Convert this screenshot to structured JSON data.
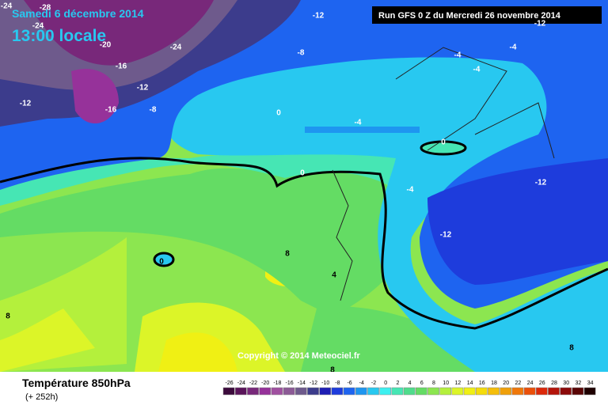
{
  "header": {
    "date": "Samedi 6 décembre 2014",
    "time": "13:00 locale",
    "run": "Run GFS 0 Z du Mercredi 26 novembre 2014"
  },
  "footer": {
    "title": "Température 850hPa",
    "lead": "(+ 252h)",
    "copyright": "Copyright © 2014 Meteociel.fr"
  },
  "scale": {
    "values": [
      -26,
      -24,
      -22,
      -20,
      -18,
      -16,
      -14,
      -12,
      -10,
      -8,
      -6,
      -4,
      -2,
      0,
      2,
      4,
      6,
      8,
      10,
      12,
      14,
      16,
      18,
      20,
      22,
      24,
      26,
      28,
      30,
      32,
      34
    ],
    "colors": [
      "#3c0a3c",
      "#5a145a",
      "#78287a",
      "#96329a",
      "#a050a0",
      "#8c5a96",
      "#6e5a8c",
      "#3c3c8c",
      "#1e1eb4",
      "#1e3cdc",
      "#1e64f0",
      "#1e96f0",
      "#28c8f0",
      "#3cf0f0",
      "#46e6b4",
      "#50dc8c",
      "#64dc64",
      "#8ce650",
      "#b4f03c",
      "#dcf528",
      "#f0f014",
      "#f5dc0a",
      "#f5be0a",
      "#f0a00a",
      "#f0780a",
      "#eb500a",
      "#dc280a",
      "#b4140a",
      "#8c0a0a",
      "#5a0505",
      "#1e0000"
    ]
  },
  "contour_labels": [
    "-24",
    "-28",
    "-24",
    "-20",
    "-24",
    "-16",
    "-12",
    "-12",
    "-16",
    "-8",
    "-12",
    "-8",
    "-12",
    "-4",
    "-4",
    "-4",
    "0",
    "-4",
    "0",
    "0",
    "-4",
    "-12",
    "-12",
    "8",
    "0",
    "4",
    "8",
    "8",
    "8"
  ]
}
